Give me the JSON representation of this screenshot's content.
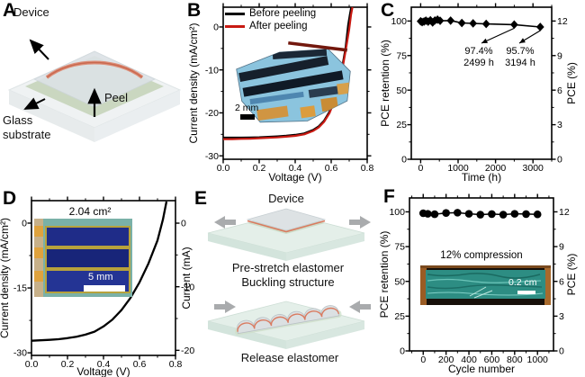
{
  "figure": {
    "background": "#ffffff",
    "accent_red": "#c81a12",
    "marker_black": "#000000",
    "arrow_gray": "#a9abad"
  },
  "panels": {
    "a": {
      "label": "A",
      "device_label": "Device",
      "peel_label": "Peel",
      "substrate_label": "Glass substrate"
    },
    "b": {
      "label": "B",
      "scalebar": "2 mm"
    },
    "c": {
      "label": "C"
    },
    "d": {
      "label": "D",
      "inset_area": "2.04 cm²",
      "scalebar": "5 mm"
    },
    "e": {
      "label": "E",
      "device_label": "Device",
      "prestretch_label": "Pre-stretch elastomer",
      "buckling_label": "Buckling structure",
      "release_label": "Release elastomer"
    },
    "f": {
      "label": "F",
      "inset_label": "12% compression",
      "scalebar": "0.2 cm"
    }
  },
  "chart_data": [
    {
      "panel": "B",
      "type": "line",
      "title": "",
      "xlabel": "Voltage (V)",
      "ylabel": "Current density (mA/cm²)",
      "xlim": [
        0,
        0.8
      ],
      "ylim": [
        -30.8,
        4.6
      ],
      "xticks": [
        0,
        0.2,
        0.4,
        0.6,
        0.8
      ],
      "xtick_labels": [
        "0.0",
        "0.2",
        "0.4",
        "0.6",
        "0.8"
      ],
      "yticks": [
        0,
        -10,
        -20,
        -30
      ],
      "x_minor_step": 0.1,
      "y_minor_step": 5,
      "legend_position": "top-left-inside",
      "series": [
        {
          "name": "Before peeling",
          "color": "#000000",
          "width": 2.4,
          "x": [
            0,
            0.05,
            0.1,
            0.15,
            0.2,
            0.25,
            0.3,
            0.35,
            0.4,
            0.45,
            0.5,
            0.53,
            0.56,
            0.59,
            0.62,
            0.64,
            0.66,
            0.68,
            0.695,
            0.705,
            0.712
          ],
          "y": [
            -25.8,
            -25.8,
            -25.8,
            -25.75,
            -25.7,
            -25.6,
            -25.5,
            -25.35,
            -25.15,
            -24.8,
            -24.0,
            -23.2,
            -21.9,
            -19.8,
            -16.6,
            -13.6,
            -9.8,
            -5.0,
            0.5,
            3.0,
            4.6
          ]
        },
        {
          "name": "After peeling",
          "color": "#c81a12",
          "width": 2.2,
          "x": [
            0,
            0.05,
            0.1,
            0.15,
            0.2,
            0.25,
            0.3,
            0.35,
            0.4,
            0.45,
            0.5,
            0.53,
            0.56,
            0.59,
            0.62,
            0.64,
            0.66,
            0.68,
            0.7,
            0.71,
            0.718
          ],
          "y": [
            -26.1,
            -26.1,
            -26.05,
            -26.0,
            -25.9,
            -25.8,
            -25.7,
            -25.55,
            -25.35,
            -25.0,
            -24.2,
            -23.4,
            -22.1,
            -20.1,
            -17.0,
            -14.1,
            -10.3,
            -5.6,
            -0.5,
            2.8,
            4.6
          ]
        }
      ]
    },
    {
      "panel": "C",
      "type": "line-scatter",
      "title": "",
      "xlabel": "Time (h)",
      "ylabel": "PCE retention (%)",
      "ylabel_right": "PCE (%)",
      "xlim": [
        -250,
        3500
      ],
      "ylim": [
        0,
        110
      ],
      "xticks": [
        0,
        1000,
        2000,
        3000
      ],
      "yticks": [
        0,
        25,
        50,
        75,
        100
      ],
      "x_minor_step": 500,
      "y_minor_step": 12.5,
      "y2lim": [
        0,
        13.2
      ],
      "y2ticks": [
        0,
        3,
        6,
        9,
        12
      ],
      "y2_minor_step": 1.5,
      "series": [
        {
          "name": "PCE retention",
          "color": "#000000",
          "width": 1.6,
          "marker": "diamond",
          "x": [
            0,
            40,
            90,
            140,
            200,
            260,
            320,
            380,
            450,
            520,
            800,
            1100,
            1400,
            1750,
            2499,
            3194
          ],
          "y": [
            99.8,
            99.2,
            99.6,
            100.3,
            99.5,
            100.5,
            99.0,
            100.4,
            101.0,
            100.2,
            100.3,
            98.6,
            98.3,
            97.9,
            97.4,
            95.7
          ]
        }
      ],
      "annotations": [
        {
          "point_x": 2499,
          "point_y": 97.4,
          "label1": "97.4%",
          "label2": "2499 h"
        },
        {
          "point_x": 3194,
          "point_y": 95.7,
          "label1": "95.7%",
          "label2": "3194 h"
        }
      ]
    },
    {
      "panel": "D",
      "type": "line",
      "title": "",
      "xlabel": "Voltage (V)",
      "ylabel": "Current density (mA/cm²)",
      "ylabel_right": "Current (mA)",
      "xlim": [
        0,
        0.8
      ],
      "ylim": [
        -30.6,
        5.2
      ],
      "xticks": [
        0,
        0.2,
        0.4,
        0.6,
        0.8
      ],
      "xtick_labels": [
        "0.0",
        "0.2",
        "0.4",
        "0.6",
        "0.8"
      ],
      "yticks": [
        0,
        -15,
        -30
      ],
      "x_minor_step": 0.1,
      "y_minor_step": 7.5,
      "y2lim": [
        -20.8,
        3.54
      ],
      "y2ticks": [
        0,
        -10,
        -20
      ],
      "y2_minor_step": 5,
      "series": [
        {
          "name": "Module J-V",
          "color": "#000000",
          "width": 2.3,
          "x": [
            0,
            0.05,
            0.1,
            0.15,
            0.2,
            0.25,
            0.3,
            0.35,
            0.4,
            0.45,
            0.5,
            0.55,
            0.6,
            0.65,
            0.7,
            0.73,
            0.75
          ],
          "y": [
            -27.2,
            -27.1,
            -27.0,
            -26.85,
            -26.6,
            -26.3,
            -25.8,
            -25.1,
            -23.9,
            -22.3,
            -20.1,
            -17.3,
            -13.7,
            -9.3,
            -4.0,
            0.8,
            5.0
          ]
        }
      ]
    },
    {
      "panel": "F",
      "type": "line-scatter",
      "title": "",
      "xlabel": "Cycle number",
      "ylabel": "PCE retention (%)",
      "ylabel_right": "PCE (%)",
      "xlim": [
        -120,
        1140
      ],
      "ylim": [
        0,
        110
      ],
      "xticks": [
        0,
        200,
        400,
        600,
        800,
        1000
      ],
      "yticks": [
        0,
        25,
        50,
        75,
        100
      ],
      "x_minor_step": 100,
      "y_minor_step": 12.5,
      "y2lim": [
        0,
        13.2
      ],
      "y2ticks": [
        0,
        3,
        6,
        9,
        12
      ],
      "y2_minor_step": 1.5,
      "series": [
        {
          "name": "PCE retention",
          "color": "#000000",
          "width": 1.5,
          "marker": "circle",
          "x": [
            0,
            40,
            100,
            200,
            300,
            400,
            500,
            600,
            700,
            800,
            900,
            1000
          ],
          "y": [
            99.0,
            98.6,
            98.3,
            99.2,
            99.4,
            98.6,
            98.0,
            98.4,
            98.0,
            98.6,
            98.4,
            98.2
          ]
        }
      ]
    }
  ]
}
